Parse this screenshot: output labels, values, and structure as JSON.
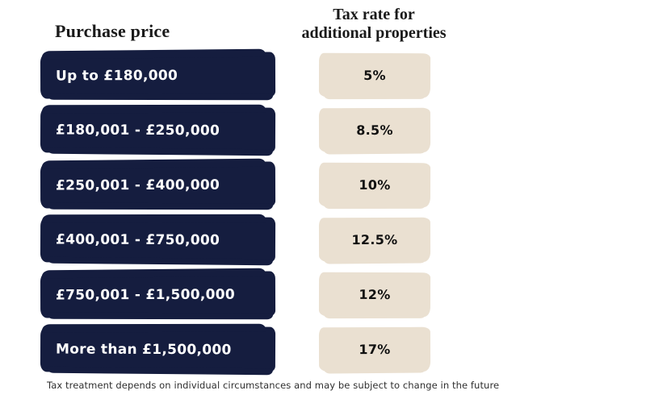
{
  "colors": {
    "navy": "#151D3F",
    "beige": "#EAE0D1",
    "band_text": "#FFFFFF",
    "rate_text": "#111111",
    "heading_text": "#1A1A1A",
    "footer_text": "#2F2F2F",
    "bg": "#FFFFFF"
  },
  "header": {
    "left_title": "Purchase price",
    "right_title_line1": "Tax rate for",
    "right_title_line2": "additional properties"
  },
  "rows": [
    {
      "band": "Up to £180,000",
      "rate": "5%"
    },
    {
      "band": "£180,001 - £250,000",
      "rate": "8.5%"
    },
    {
      "band": "£250,001 - £400,000",
      "rate": "10%"
    },
    {
      "band": "£400,001 - £750,000",
      "rate": "12.5%"
    },
    {
      "band": "£750,001 - £1,500,000",
      "rate": "12%"
    },
    {
      "band": "More than £1,500,000",
      "rate": "17%"
    }
  ],
  "footer": {
    "disclaimer": "Tax treatment depends on individual circumstances and may be subject to change in the future"
  },
  "chart_data": {
    "type": "table",
    "columns": [
      "Purchase price",
      "Tax rate for additional properties"
    ],
    "categories": [
      "Up to £180,000",
      "£180,001 - £250,000",
      "£250,001 - £400,000",
      "£400,001 - £750,000",
      "£750,001 - £1,500,000",
      "More than £1,500,000"
    ],
    "values": [
      5,
      8.5,
      10,
      12.5,
      12,
      17
    ],
    "value_labels": [
      "5%",
      "8.5%",
      "10%",
      "12.5%",
      "12%",
      "17%"
    ],
    "title": "",
    "note": "Tax treatment depends on individual circumstances and may be subject to change in the future"
  }
}
